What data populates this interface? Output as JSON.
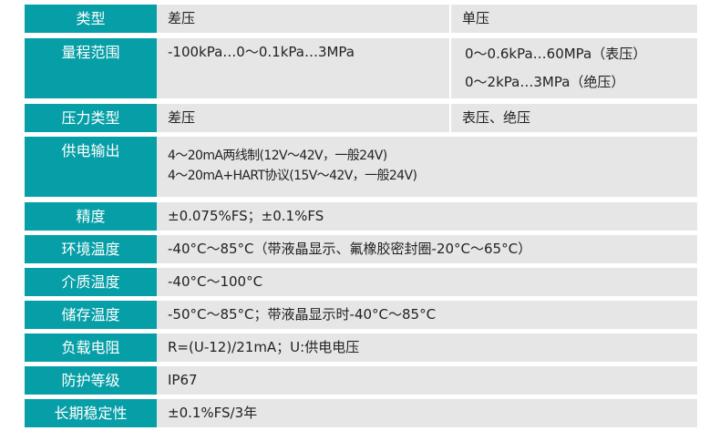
{
  "rows": [
    {
      "label": "类型",
      "value": "差压",
      "value2": "单压"
    },
    {
      "label": "量程范围",
      "value": "-100kPa…0～0.1kPa…3MPa",
      "value2_lines": [
        "0～0.6kPa…60MPa（表压）",
        "0～2kPa…3MPa（绝压）"
      ]
    },
    {
      "label": "压力类型",
      "value": "差压",
      "value2": "表压、绝压"
    },
    {
      "label": "供电输出",
      "lines": [
        "4～20mA两线制(12V～42V，一般24V)",
        "4～20mA+HART协议(15V～42V，一般24V)"
      ]
    },
    {
      "label": "精度",
      "value": "±0.075%FS；±0.1%FS"
    },
    {
      "label": "环境温度",
      "value": "-40°C～85°C（带液晶显示、氟橡胶密封圈-20°C～65°C）"
    },
    {
      "label": "介质温度",
      "value": "-40°C～100°C"
    },
    {
      "label": "储存温度",
      "value": "-50°C～85°C；带液晶显示时-40°C～85°C"
    },
    {
      "label": "负载电阻",
      "value": "R=(U-12)/21mA；U:供电电压"
    },
    {
      "label": "防护等级",
      "value": "IP67"
    },
    {
      "label": "长期稳定性",
      "value": "±0.1%FS/3年"
    }
  ],
  "colors": {
    "label_bg": "#079fa7",
    "value_bg": "#e6e6e6"
  }
}
